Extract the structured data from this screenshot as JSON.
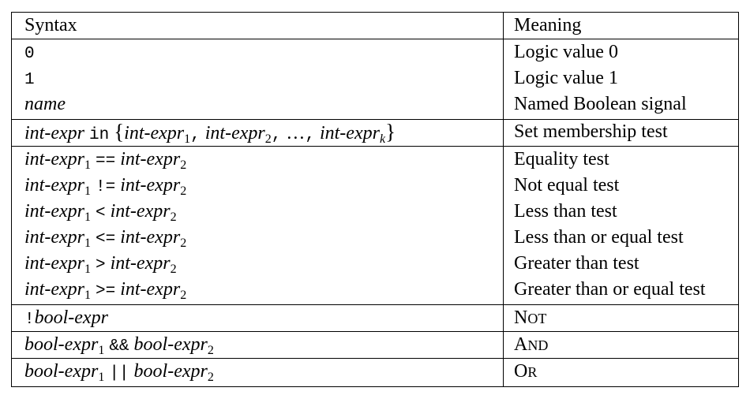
{
  "header": {
    "syntax": "Syntax",
    "meaning": "Meaning"
  },
  "tokens": {
    "int_expr": "int-expr",
    "bool_expr": "bool-expr",
    "name": "name",
    "sub_1": "1",
    "sub_2": "2",
    "sub_k": "k",
    "zero": "0",
    "one": "1",
    "kw_in": "in",
    "lbrace": "{",
    "rbrace": "}",
    "comma": ",",
    "ellipsis": "…",
    "op_eq": "==",
    "op_ne": "!=",
    "op_lt": "<",
    "op_le": "<=",
    "op_gt": ">",
    "op_ge": ">=",
    "op_not": "!",
    "op_and": "&&",
    "op_or": "||"
  },
  "meanings": {
    "logic0": "Logic value 0",
    "logic1": "Logic value 1",
    "named": "Named Boolean signal",
    "setmem": "Set membership test",
    "eq": "Equality test",
    "ne": "Not equal test",
    "lt": "Less than test",
    "le": "Less than or equal test",
    "gt": "Greater than test",
    "ge": "Greater than or equal test"
  },
  "logic_ops": {
    "not": {
      "cap": "N",
      "rest": "OT"
    },
    "and": {
      "cap": "A",
      "rest": "ND"
    },
    "or": {
      "cap": "O",
      "rest": "R"
    }
  }
}
